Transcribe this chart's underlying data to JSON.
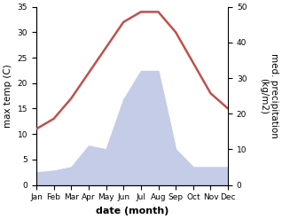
{
  "months": [
    "Jan",
    "Feb",
    "Mar",
    "Apr",
    "May",
    "Jun",
    "Jul",
    "Aug",
    "Sep",
    "Oct",
    "Nov",
    "Dec"
  ],
  "temp": [
    11,
    13,
    17,
    22,
    27,
    32,
    34,
    34,
    30,
    24,
    18,
    15
  ],
  "precip": [
    3.5,
    4.0,
    5.0,
    11.0,
    10.0,
    24.0,
    32.0,
    32.0,
    10.0,
    5.0,
    5.0,
    5.0
  ],
  "temp_color": "#c0504d",
  "precip_fill_color": "#c5cce8",
  "xlabel": "date (month)",
  "ylabel_left": "max temp (C)",
  "ylabel_right": "med. precipitation\n(kg/m2)",
  "ylim_left": [
    0,
    35
  ],
  "ylim_right": [
    0,
    50
  ],
  "yticks_left": [
    0,
    5,
    10,
    15,
    20,
    25,
    30,
    35
  ],
  "yticks_right": [
    0,
    10,
    20,
    30,
    40,
    50
  ],
  "bg_color": "#ffffff",
  "line_width": 1.8,
  "tick_fontsize": 6.5,
  "label_fontsize": 7.5,
  "xlabel_fontsize": 8
}
